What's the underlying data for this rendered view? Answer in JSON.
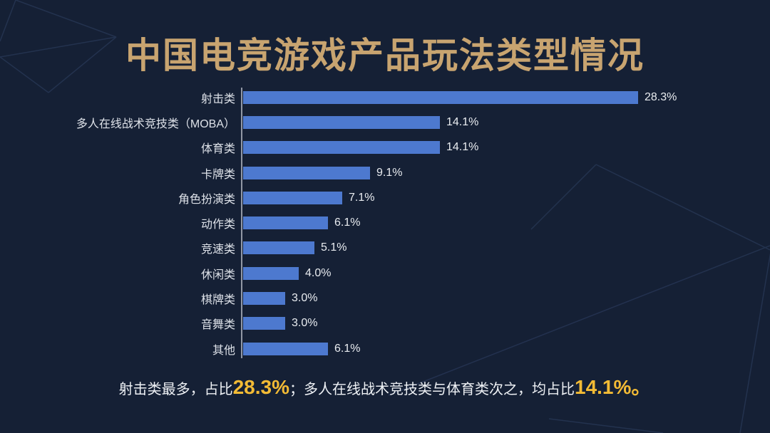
{
  "title": "中国电竞游戏产品玩法类型情况",
  "chart_data": {
    "type": "bar",
    "orientation": "horizontal",
    "title": "中国电竞游戏产品玩法类型情况",
    "categories": [
      "射击类",
      "多人在线战术竞技类（MOBA）",
      "体育类",
      "卡牌类",
      "角色扮演类",
      "动作类",
      "竞速类",
      "休闲类",
      "棋牌类",
      "音舞类",
      "其他"
    ],
    "values": [
      28.3,
      14.1,
      14.1,
      9.1,
      7.1,
      6.1,
      5.1,
      4.0,
      3.0,
      3.0,
      6.1
    ],
    "value_labels": [
      "28.3%",
      "14.1%",
      "14.1%",
      "9.1%",
      "7.1%",
      "6.1%",
      "5.1%",
      "4.0%",
      "3.0%",
      "3.0%",
      "6.1%"
    ],
    "xlim": [
      0,
      30
    ],
    "grid": false,
    "legend": false,
    "value_labels_position": "end-of-bar"
  },
  "caption": {
    "segments": [
      {
        "text": "射击类最多，占比",
        "highlight": false
      },
      {
        "text": "28.3%",
        "highlight": true
      },
      {
        "text": "；多人在线战术竞技类与体育类次之，均占比",
        "highlight": false
      },
      {
        "text": "14.1%。",
        "highlight": true
      }
    ]
  },
  "colors": {
    "background": "#152035",
    "title_gold": "#c8a470",
    "highlight_gold": "#f3bb35",
    "bar_blue": "#4d79cf",
    "axis_line": "#a7adb8",
    "category_text": "#dde1e8",
    "value_text": "#e9ecf0",
    "decor_line": "#35486e"
  }
}
